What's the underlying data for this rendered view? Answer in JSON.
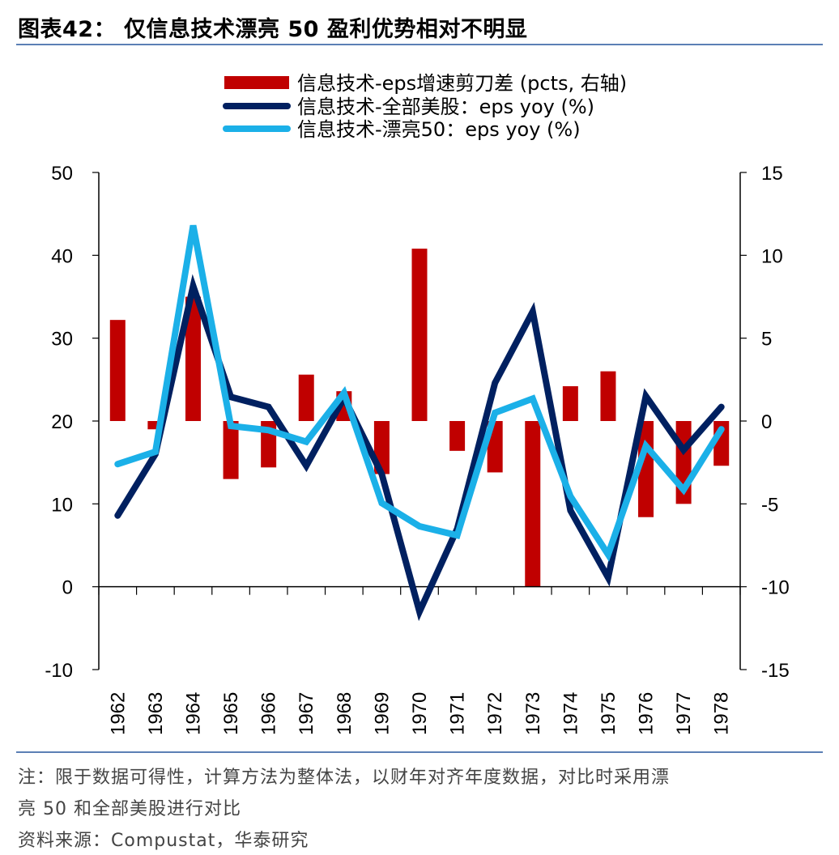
{
  "header": {
    "title": "图表42： 仅信息技术漂亮 50 盈利优势相对不明显"
  },
  "footer": {
    "note_line1": "注：限于数据可得性，计算方法为整体法，以财年对齐年度数据，对比时采用漂",
    "note_line2": "亮 50 和全部美股进行对比",
    "source": "资料来源：Compustat，华泰研究"
  },
  "chart_data": {
    "type": "bar+line",
    "categories": [
      "1962",
      "1963",
      "1964",
      "1965",
      "1966",
      "1967",
      "1968",
      "1969",
      "1970",
      "1971",
      "1972",
      "1973",
      "1974",
      "1975",
      "1976",
      "1977",
      "1978"
    ],
    "left_axis": {
      "range": [
        -10,
        50
      ],
      "ticks": [
        "50",
        "40",
        "30",
        "20",
        "10",
        "0",
        "-10"
      ]
    },
    "right_axis": {
      "range": [
        -15,
        15
      ],
      "ticks": [
        "15",
        "10",
        "5",
        "0",
        "-5",
        "-10",
        "-15"
      ]
    },
    "legend_position": "top-center",
    "series": [
      {
        "name": "信息技术-eps增速剪刀差 (pcts, 右轴)",
        "type": "bar",
        "axis": "right",
        "color": "#c00000",
        "values": [
          6.1,
          -0.5,
          7.5,
          -3.5,
          -2.8,
          2.8,
          1.8,
          -3.2,
          10.4,
          -1.8,
          -3.1,
          -10.0,
          2.1,
          3.0,
          -5.8,
          -5.0,
          -2.7
        ]
      },
      {
        "name": "信息技术-全部美股：eps yoy (%)",
        "type": "line",
        "axis": "left",
        "color": "#002060",
        "values": [
          8.6,
          16.0,
          36.3,
          22.9,
          21.7,
          14.6,
          22.8,
          13.6,
          -3.0,
          7.0,
          24.6,
          33.2,
          9.2,
          1.1,
          23.0,
          16.5,
          21.7
        ]
      },
      {
        "name": "信息技术-漂亮50：eps yoy (%)",
        "type": "line",
        "axis": "left",
        "color": "#1bb0e8",
        "values": [
          14.8,
          16.3,
          43.6,
          19.4,
          18.9,
          17.5,
          23.4,
          10.1,
          7.3,
          6.2,
          21.0,
          22.7,
          10.9,
          3.9,
          17.0,
          11.7,
          19.0
        ]
      }
    ]
  }
}
